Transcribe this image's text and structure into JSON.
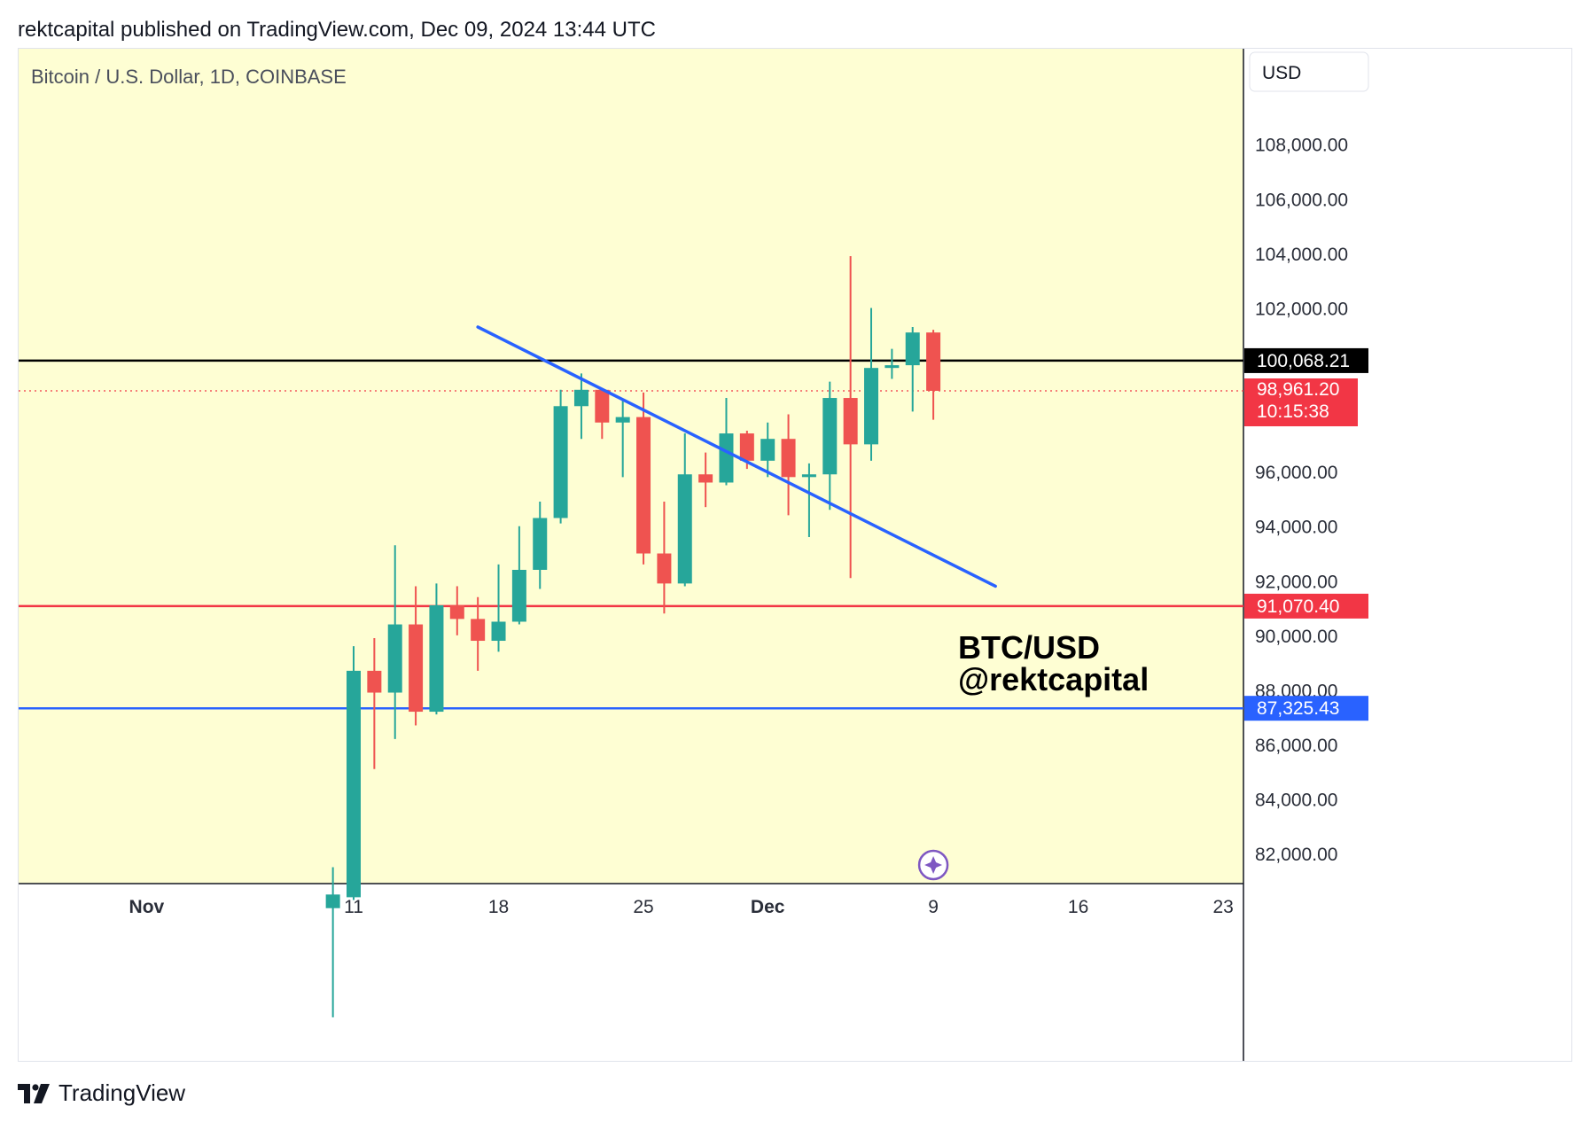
{
  "header": {
    "text": "rektcapital published on TradingView.com, Dec 09, 2024 13:44 UTC"
  },
  "footer": {
    "brand": "TradingView"
  },
  "chart_data": {
    "type": "candlestick",
    "title": "Bitcoin / U.S. Dollar, 1D, COINBASE",
    "currency_button": "USD",
    "annotation": [
      "BTC/USD",
      "@rektcapital"
    ],
    "ylim": [
      80900,
      111500
    ],
    "y_ticks": [
      {
        "value": 82000,
        "label": "82,000.00"
      },
      {
        "value": 84000,
        "label": "84,000.00"
      },
      {
        "value": 86000,
        "label": "86,000.00"
      },
      {
        "value": 88000,
        "label": "88,000.00"
      },
      {
        "value": 90000,
        "label": "90,000.00"
      },
      {
        "value": 92000,
        "label": "92,000.00"
      },
      {
        "value": 94000,
        "label": "94,000.00"
      },
      {
        "value": 96000,
        "label": "96,000.00"
      },
      {
        "value": 102000,
        "label": "102,000.00"
      },
      {
        "value": 104000,
        "label": "104,000.00"
      },
      {
        "value": 106000,
        "label": "106,000.00"
      },
      {
        "value": 108000,
        "label": "108,000.00"
      }
    ],
    "x_ticks": [
      {
        "date": "2024-11-01",
        "label": "Nov",
        "bold": true
      },
      {
        "date": "2024-11-11",
        "label": "11",
        "bold": false
      },
      {
        "date": "2024-11-18",
        "label": "18",
        "bold": false
      },
      {
        "date": "2024-11-25",
        "label": "25",
        "bold": false
      },
      {
        "date": "2024-12-01",
        "label": "Dec",
        "bold": true
      },
      {
        "date": "2024-12-09",
        "label": "9",
        "bold": false
      },
      {
        "date": "2024-12-16",
        "label": "16",
        "bold": false
      },
      {
        "date": "2024-12-23",
        "label": "23",
        "bold": false
      }
    ],
    "candles": [
      {
        "date": "2024-11-10",
        "open": 80000,
        "high": 81500,
        "low": 76000,
        "close": 80500
      },
      {
        "date": "2024-11-11",
        "open": 80400,
        "high": 89600,
        "low": 80300,
        "close": 88700
      },
      {
        "date": "2024-11-12",
        "open": 88700,
        "high": 89900,
        "low": 85100,
        "close": 87900
      },
      {
        "date": "2024-11-13",
        "open": 87900,
        "high": 93300,
        "low": 86200,
        "close": 90400
      },
      {
        "date": "2024-11-14",
        "open": 90400,
        "high": 91800,
        "low": 86700,
        "close": 87200
      },
      {
        "date": "2024-11-15",
        "open": 87200,
        "high": 91900,
        "low": 87100,
        "close": 91100
      },
      {
        "date": "2024-11-16",
        "open": 91100,
        "high": 91800,
        "low": 90000,
        "close": 90600
      },
      {
        "date": "2024-11-17",
        "open": 90600,
        "high": 91400,
        "low": 88700,
        "close": 89800
      },
      {
        "date": "2024-11-18",
        "open": 89800,
        "high": 92600,
        "low": 89400,
        "close": 90500
      },
      {
        "date": "2024-11-19",
        "open": 90500,
        "high": 94000,
        "low": 90400,
        "close": 92400
      },
      {
        "date": "2024-11-20",
        "open": 92400,
        "high": 94900,
        "low": 91700,
        "close": 94300
      },
      {
        "date": "2024-11-21",
        "open": 94300,
        "high": 99000,
        "low": 94100,
        "close": 98400
      },
      {
        "date": "2024-11-22",
        "open": 98400,
        "high": 99600,
        "low": 97200,
        "close": 99000
      },
      {
        "date": "2024-11-23",
        "open": 99000,
        "high": 98900,
        "low": 97200,
        "close": 97800
      },
      {
        "date": "2024-11-24",
        "open": 97800,
        "high": 98600,
        "low": 95800,
        "close": 98000
      },
      {
        "date": "2024-11-25",
        "open": 98000,
        "high": 98900,
        "low": 92600,
        "close": 93000
      },
      {
        "date": "2024-11-26",
        "open": 93000,
        "high": 94900,
        "low": 90800,
        "close": 91900
      },
      {
        "date": "2024-11-27",
        "open": 91900,
        "high": 97400,
        "low": 91800,
        "close": 95900
      },
      {
        "date": "2024-11-28",
        "open": 95900,
        "high": 96700,
        "low": 94700,
        "close": 95600
      },
      {
        "date": "2024-11-29",
        "open": 95600,
        "high": 98700,
        "low": 95500,
        "close": 97400
      },
      {
        "date": "2024-11-30",
        "open": 97400,
        "high": 97500,
        "low": 96100,
        "close": 96400
      },
      {
        "date": "2024-12-01",
        "open": 96400,
        "high": 97800,
        "low": 95800,
        "close": 97200
      },
      {
        "date": "2024-12-02",
        "open": 97200,
        "high": 98100,
        "low": 94400,
        "close": 95800
      },
      {
        "date": "2024-12-03",
        "open": 95800,
        "high": 96300,
        "low": 93600,
        "close": 95900
      },
      {
        "date": "2024-12-04",
        "open": 95900,
        "high": 99300,
        "low": 94600,
        "close": 98700
      },
      {
        "date": "2024-12-05",
        "open": 98700,
        "high": 103900,
        "low": 92100,
        "close": 97000
      },
      {
        "date": "2024-12-06",
        "open": 97000,
        "high": 102000,
        "low": 96400,
        "close": 99800
      },
      {
        "date": "2024-12-07",
        "open": 99800,
        "high": 100500,
        "low": 99400,
        "close": 99900
      },
      {
        "date": "2024-12-08",
        "open": 99900,
        "high": 101300,
        "low": 98200,
        "close": 101100
      },
      {
        "date": "2024-12-09",
        "open": 101100,
        "high": 101200,
        "low": 97900,
        "close": 98961.2
      }
    ],
    "horizontal_lines": [
      {
        "value": 100068.21,
        "label": "100,068.21",
        "color": "#000000",
        "style": "solid"
      },
      {
        "value": 91070.4,
        "label": "91,070.40",
        "color": "#f23645",
        "style": "solid"
      },
      {
        "value": 87325.43,
        "label": "87,325.43",
        "color": "#2962ff",
        "style": "solid"
      },
      {
        "value": 98961.2,
        "label": "98,961.20",
        "sublabel": "10:15:38",
        "color": "#f23645",
        "style": "dotted"
      }
    ],
    "trendline": {
      "from": {
        "date": "2024-11-17",
        "value": 101300
      },
      "to": {
        "date": "2024-12-12",
        "value": 91800
      },
      "color": "#2962ff"
    },
    "colors": {
      "background": "#fefed3",
      "up": "#26a69a",
      "down": "#ef5350",
      "axis_bg": "#ffffff"
    }
  }
}
